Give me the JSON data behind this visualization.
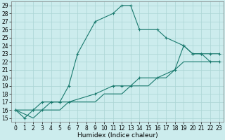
{
  "title": "",
  "xlabel": "Humidex (Indice chaleur)",
  "bg_color": "#cceced",
  "line_color": "#1a7a6e",
  "grid_color": "#aad4d4",
  "xlim": [
    -0.5,
    23.5
  ],
  "ylim": [
    14.5,
    29.5
  ],
  "xticks": [
    0,
    1,
    2,
    3,
    4,
    5,
    6,
    7,
    8,
    9,
    10,
    11,
    12,
    13,
    14,
    15,
    16,
    17,
    18,
    19,
    20,
    21,
    22,
    23
  ],
  "yticks": [
    15,
    16,
    17,
    18,
    19,
    20,
    21,
    22,
    23,
    24,
    25,
    26,
    27,
    28,
    29
  ],
  "line1_x": [
    0,
    1,
    2,
    3,
    4,
    5,
    6,
    7,
    9,
    11,
    12,
    13,
    14,
    16,
    17,
    19,
    20,
    21,
    22,
    23
  ],
  "line1_y": [
    16,
    15,
    16,
    17,
    17,
    17,
    19,
    23,
    27,
    28,
    29,
    29,
    26,
    26,
    25,
    24,
    23,
    23,
    23,
    23
  ],
  "line2_x": [
    0,
    2,
    3,
    4,
    5,
    6,
    9,
    11,
    12,
    13,
    14,
    16,
    18,
    19,
    20,
    21,
    22,
    23
  ],
  "line2_y": [
    16,
    16,
    16,
    17,
    17,
    17,
    18,
    19,
    19,
    19,
    20,
    20,
    21,
    24,
    23,
    23,
    22,
    22
  ],
  "line3_x": [
    0,
    2,
    3,
    5,
    6,
    9,
    10,
    11,
    12,
    13,
    14,
    15,
    16,
    17,
    18,
    19,
    20,
    21,
    22,
    23
  ],
  "line3_y": [
    16,
    15,
    16,
    16,
    17,
    17,
    18,
    18,
    18,
    19,
    19,
    19,
    20,
    20,
    21,
    22,
    22,
    22,
    22,
    22
  ],
  "tick_fontsize": 5.5,
  "xlabel_fontsize": 6.5
}
